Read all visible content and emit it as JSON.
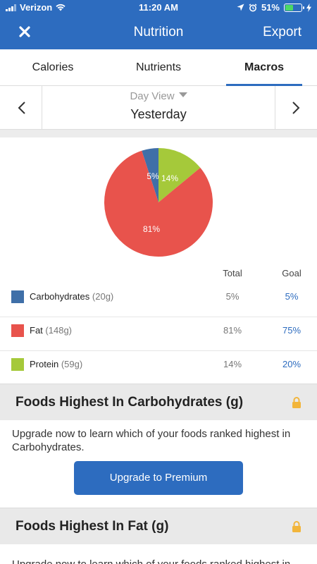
{
  "status_bar": {
    "carrier": "Verizon",
    "time": "11:20 AM",
    "battery": "51%",
    "battery_fill": 0.51
  },
  "header": {
    "title": "Nutrition",
    "export_label": "Export",
    "close_icon": "close-icon"
  },
  "tabs": [
    {
      "label": "Calories",
      "active": false
    },
    {
      "label": "Nutrients",
      "active": false
    },
    {
      "label": "Macros",
      "active": true
    }
  ],
  "date": {
    "mode": "Day View",
    "day": "Yesterday"
  },
  "chart_data": {
    "type": "pie",
    "slices": [
      {
        "label": "Carbohydrates",
        "value": 5,
        "display": "5%",
        "color": "#3f6fa8"
      },
      {
        "label": "Fat",
        "value": 81,
        "display": "81%",
        "color": "#e8534c"
      },
      {
        "label": "Protein",
        "value": 14,
        "display": "14%",
        "color": "#a5c93a"
      }
    ]
  },
  "macros": {
    "headers": {
      "total": "Total",
      "goal": "Goal"
    },
    "rows": [
      {
        "name": "Carbohydrates",
        "grams": "(20g)",
        "total": "5%",
        "goal": "5%",
        "color": "#3f6fa8"
      },
      {
        "name": "Fat",
        "grams": "(148g)",
        "total": "81%",
        "goal": "75%",
        "color": "#e8534c"
      },
      {
        "name": "Protein",
        "grams": "(59g)",
        "total": "14%",
        "goal": "20%",
        "color": "#a5c93a"
      }
    ]
  },
  "sections": [
    {
      "title": "Foods Highest In Carbohydrates (g)",
      "message": "Upgrade now to learn which of your foods ranked highest in Carbohydrates.",
      "button": "Upgrade to Premium"
    },
    {
      "title": "Foods Highest In Fat (g)",
      "message": "Upgrade now to learn which of your foods ranked highest in Fat."
    }
  ],
  "colors": {
    "brand": "#2d6cbf",
    "lock": "#f2b53b"
  }
}
